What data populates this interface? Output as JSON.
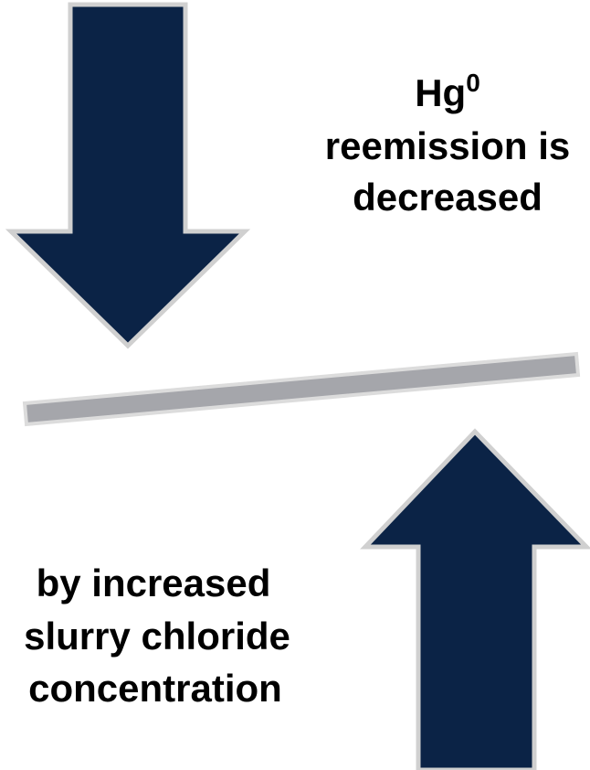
{
  "top_label": {
    "element": "Hg",
    "superscript": "0",
    "lines": [
      "reemission is",
      "decreased"
    ]
  },
  "bottom_label": {
    "lines": [
      "by increased",
      "slurry chloride",
      "concentration"
    ]
  }
}
